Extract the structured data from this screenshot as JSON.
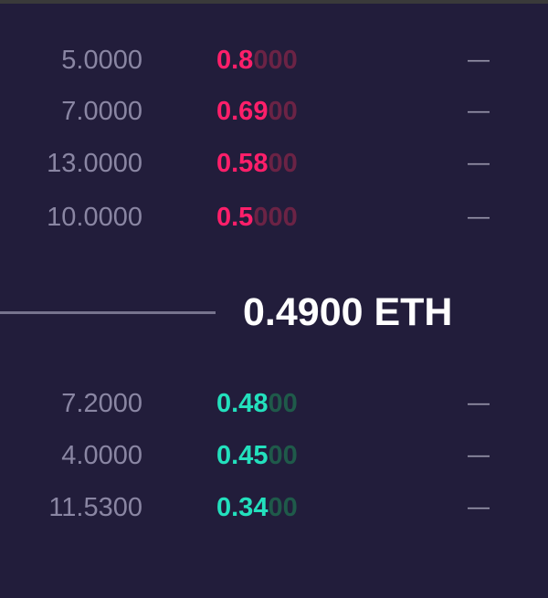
{
  "asks": [
    {
      "amount": "5.0000",
      "price_main": "0.8",
      "price_faded": "000",
      "total": "—"
    },
    {
      "amount": "7.0000",
      "price_main": "0.69",
      "price_faded": "00",
      "total": "—"
    },
    {
      "amount": "13.0000",
      "price_main": "0.58",
      "price_faded": "00",
      "total": "—"
    },
    {
      "amount": "10.0000",
      "price_main": "0.5",
      "price_faded": "000",
      "total": "—"
    }
  ],
  "mid": {
    "price": "0.4900 ETH"
  },
  "bids": [
    {
      "amount": "7.2000",
      "price_main": "0.48",
      "price_faded": "00",
      "total": "—"
    },
    {
      "amount": "4.0000",
      "price_main": "0.45",
      "price_faded": "00",
      "total": "—"
    },
    {
      "amount": "11.5300",
      "price_main": "0.34",
      "price_faded": "00",
      "total": "—"
    }
  ],
  "colors": {
    "background": "#221d3b",
    "ask": "#ff1f6a",
    "bid": "#23e0bd",
    "amount_text": "#8a86a3",
    "mid_price": "#ffffff"
  }
}
